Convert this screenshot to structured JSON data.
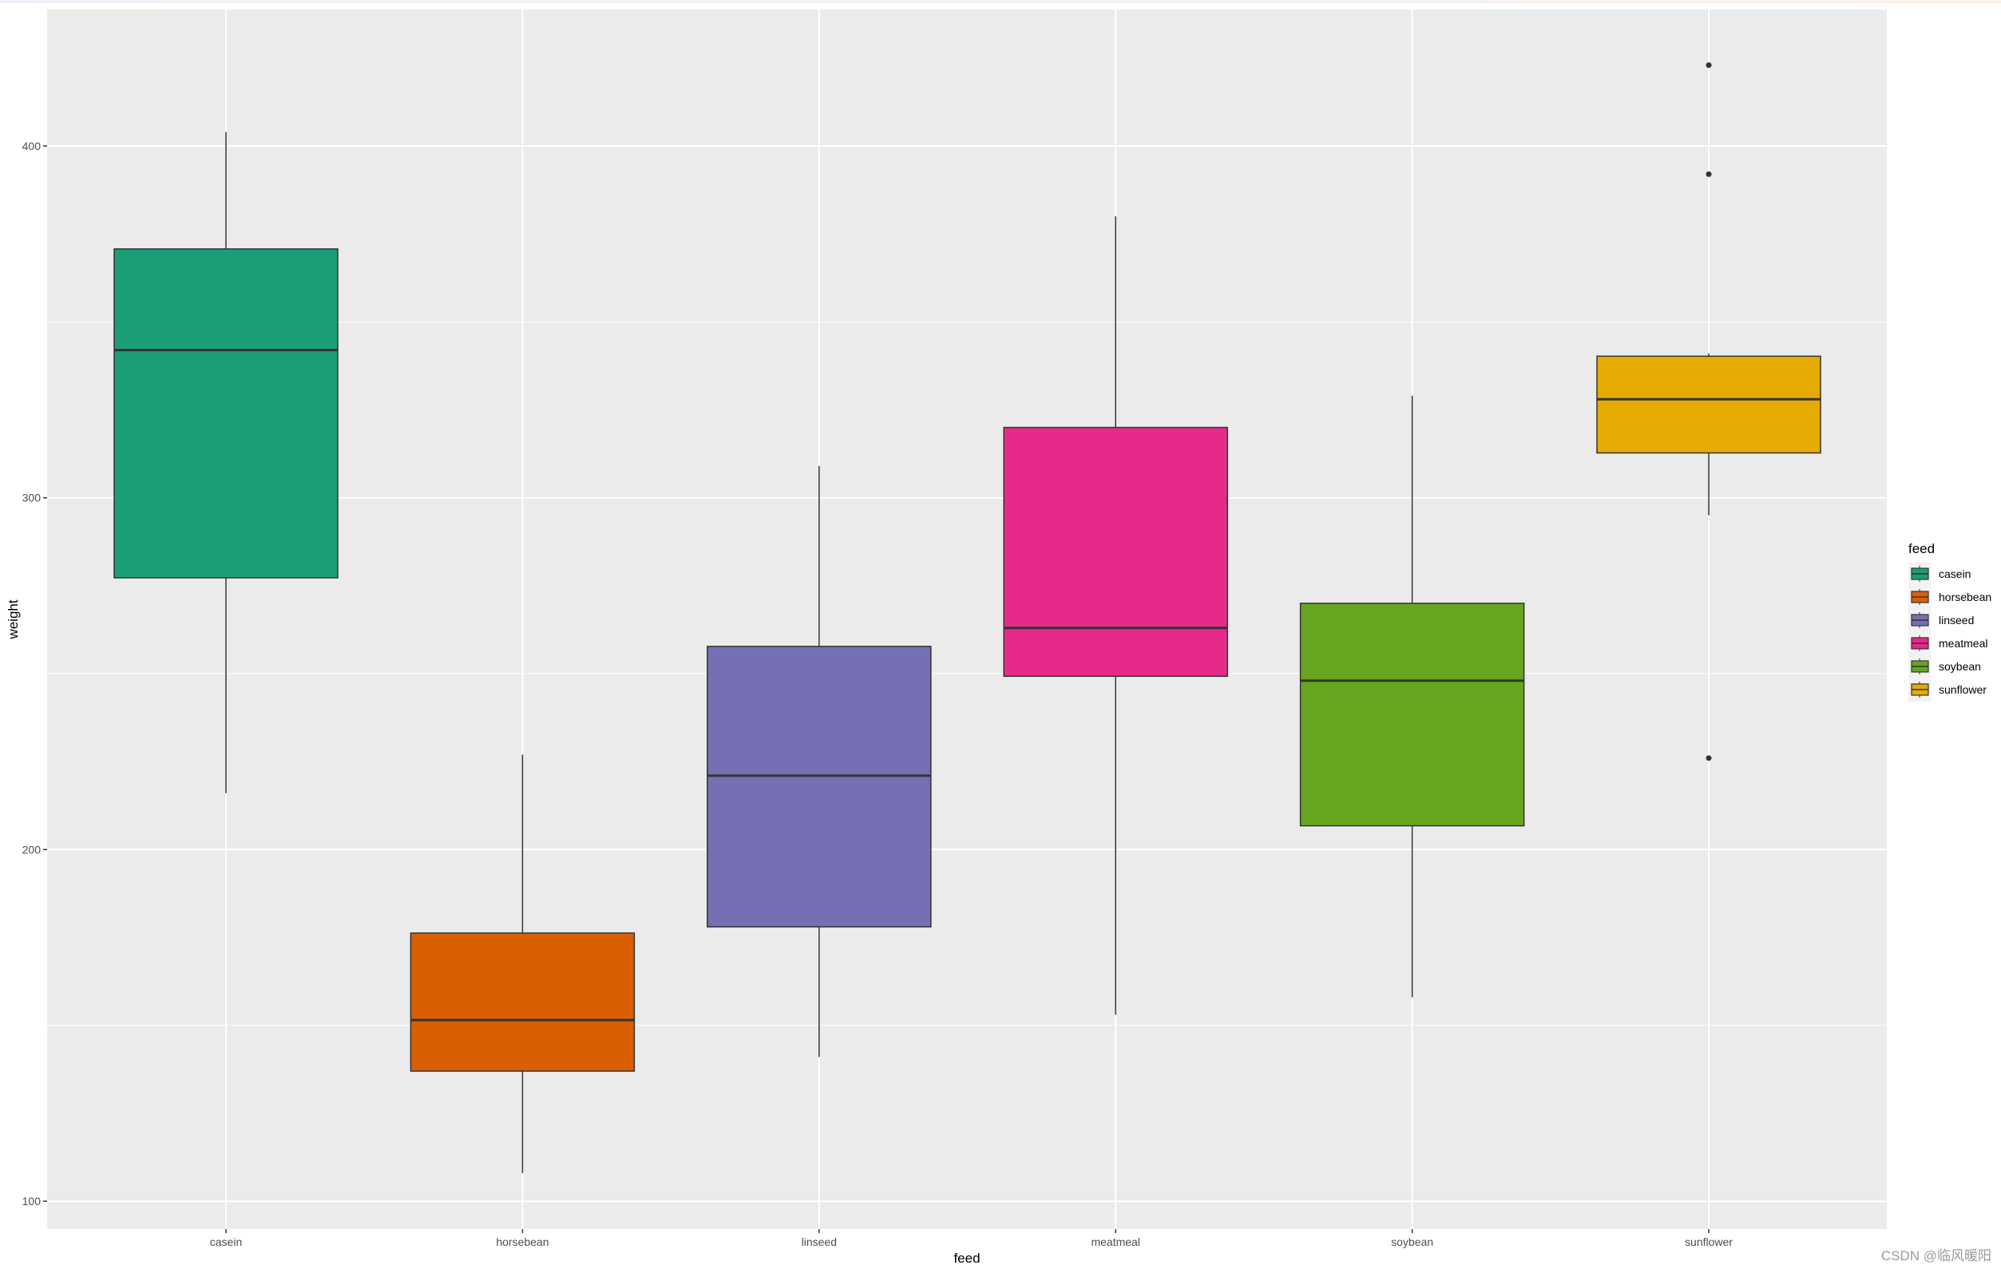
{
  "chart_data": {
    "type": "boxplot",
    "title": "",
    "xlabel": "feed",
    "ylabel": "weight",
    "categories": [
      "casein",
      "horsebean",
      "linseed",
      "meatmeal",
      "soybean",
      "sunflower"
    ],
    "y_ticks": [
      100,
      200,
      300,
      400
    ],
    "ylim": [
      92.4,
      438.6
    ],
    "grid": true,
    "legend": {
      "title": "feed",
      "position": "right",
      "entries": [
        "casein",
        "horsebean",
        "linseed",
        "meatmeal",
        "soybean",
        "sunflower"
      ]
    },
    "series": [
      {
        "name": "casein",
        "color": "#1B9E77",
        "min": 216,
        "q1": 277.25,
        "median": 342,
        "q3": 370.75,
        "max": 404,
        "outliers": []
      },
      {
        "name": "horsebean",
        "color": "#D95F02",
        "min": 108,
        "q1": 137,
        "median": 151.5,
        "q3": 176.25,
        "max": 227,
        "outliers": []
      },
      {
        "name": "linseed",
        "color": "#7570B3",
        "min": 141,
        "q1": 178,
        "median": 221,
        "q3": 257.75,
        "max": 309,
        "outliers": []
      },
      {
        "name": "meatmeal",
        "color": "#E7298A",
        "min": 153,
        "q1": 249.25,
        "median": 263,
        "q3": 320,
        "max": 380,
        "outliers": []
      },
      {
        "name": "soybean",
        "color": "#66A61E",
        "min": 158,
        "q1": 206.75,
        "median": 248,
        "q3": 270,
        "max": 329,
        "outliers": []
      },
      {
        "name": "sunflower",
        "color": "#E6AB02",
        "min": 295,
        "q1": 312.75,
        "median": 328,
        "q3": 340.25,
        "max": 341,
        "outliers": [
          423,
          392,
          226
        ]
      }
    ]
  },
  "colors": {
    "panel_background": "#EBEBEB",
    "gridline": "#FFFFFF",
    "box_outline": "#333333",
    "tick_text": "#4D4D4D"
  },
  "watermark": "CSDN @临风暖阳"
}
